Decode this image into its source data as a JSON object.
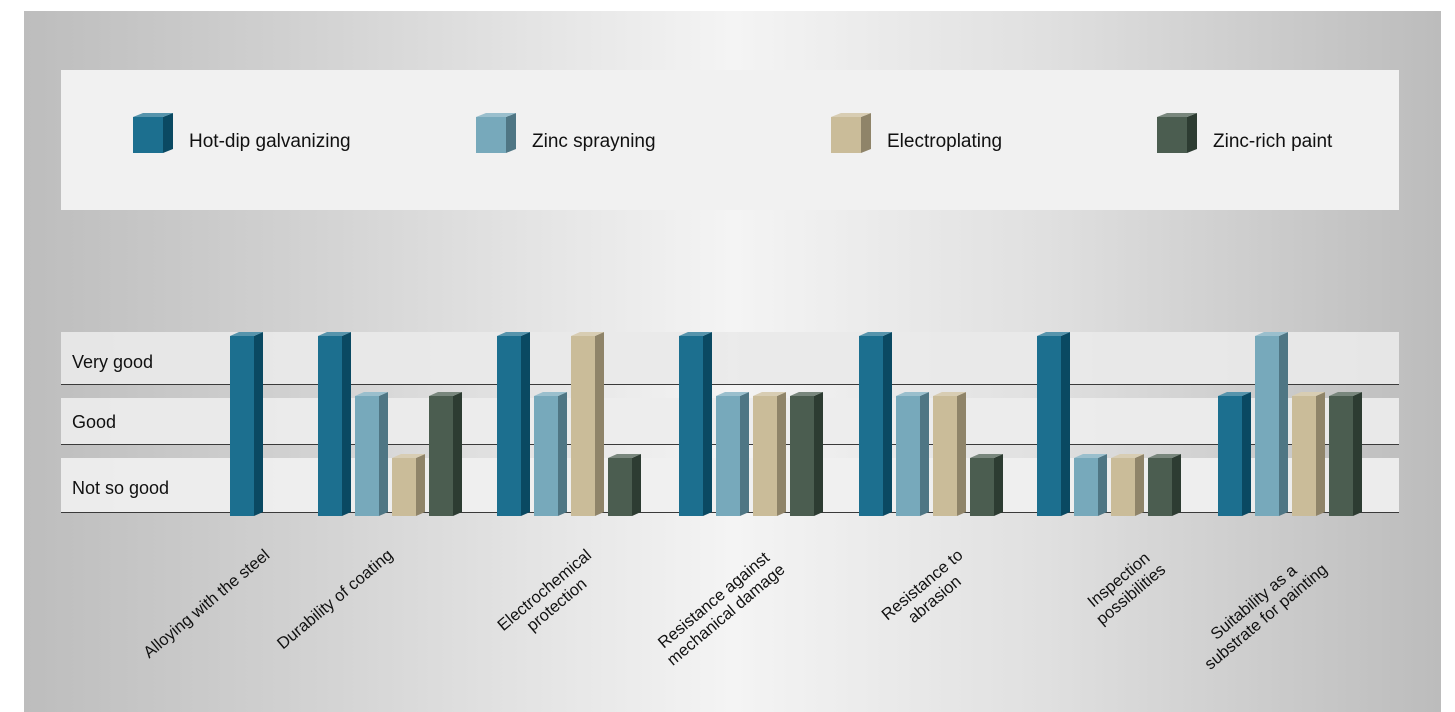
{
  "colors": {
    "hot_dip": "#0e6688",
    "spraying": "#6ea4b7",
    "electroplating": "#c7b892",
    "paint": "#3f5345"
  },
  "chart_data": {
    "type": "bar",
    "levels": [
      "Not so good",
      "Good",
      "Very good"
    ],
    "categories": [
      "Alloying with the steel",
      "Durability of coating",
      "Electrochemical\nprotection",
      "Resistance against\nmechanical damage",
      "Resistance to\nabrasion",
      "Inspection\npossibilities",
      "Suitability as a\nsubstrate for painting"
    ],
    "ylim": [
      0,
      3
    ],
    "legend_position": "top",
    "series": [
      {
        "name": "Hot-dip galvanizing",
        "color": "#0e6688",
        "values": [
          3,
          3,
          3,
          3,
          3,
          3,
          2
        ]
      },
      {
        "name": "Zinc sprayning",
        "color": "#6ea4b7",
        "values": [
          null,
          2,
          2,
          2,
          2,
          1,
          3
        ]
      },
      {
        "name": "Electroplating",
        "color": "#c7b892",
        "values": [
          null,
          1,
          3,
          2,
          2,
          1,
          2
        ]
      },
      {
        "name": "Zinc-rich paint",
        "color": "#3f5345",
        "values": [
          null,
          2,
          1,
          2,
          1,
          1,
          2
        ]
      }
    ]
  }
}
